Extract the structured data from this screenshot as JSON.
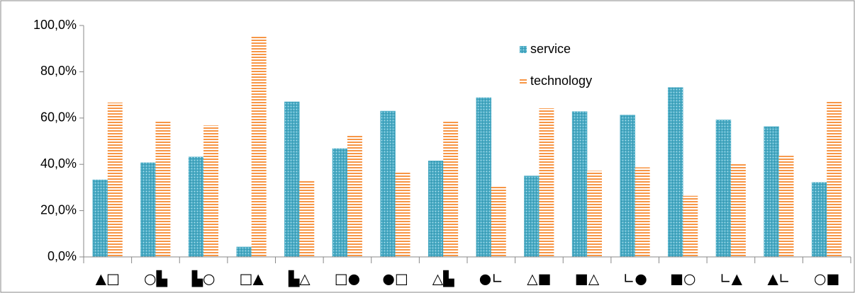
{
  "chart_data": {
    "type": "bar",
    "categories": [
      "▲□",
      "○▙",
      "▙○",
      "□▲",
      "▙△",
      "□●",
      "●□",
      "△▙",
      "●∟",
      "△■",
      "■△",
      "∟●",
      "■○",
      "∟▲",
      "▲∟",
      "○■"
    ],
    "series": [
      {
        "name": "service",
        "color": "#4bacc6",
        "values": [
          33.3,
          40.7,
          43.2,
          4.3,
          67,
          46.8,
          63,
          41.5,
          68.8,
          35,
          62.8,
          61.3,
          73.2,
          59.2,
          56.3,
          32.2
        ]
      },
      {
        "name": "technology",
        "color": "#f79646",
        "values": [
          66.7,
          58.9,
          56.8,
          95.7,
          32.8,
          52.8,
          37,
          58.4,
          30.5,
          64.2,
          37.2,
          38.7,
          26.4,
          40.5,
          43.7,
          67.2
        ]
      }
    ],
    "ylim": [
      0,
      100
    ],
    "yticks": [
      {
        "value": 0,
        "label": "0,0%"
      },
      {
        "value": 20,
        "label": "20,0%"
      },
      {
        "value": 40,
        "label": "40,0%"
      },
      {
        "value": 60,
        "label": "60,0%"
      },
      {
        "value": 80,
        "label": "80,0%"
      },
      {
        "value": 100,
        "label": "100,0%"
      }
    ],
    "grid": false,
    "legend": "top-right"
  }
}
